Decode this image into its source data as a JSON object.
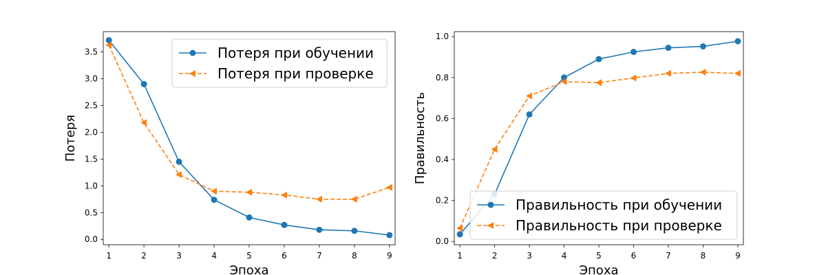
{
  "chart_data": [
    {
      "type": "line",
      "x": [
        1,
        2,
        3,
        4,
        5,
        6,
        7,
        8,
        9
      ],
      "xlabel": "Эпоха",
      "ylabel": "Потеря",
      "xlim": [
        0.84,
        9.16
      ],
      "ylim": [
        -0.1,
        3.88
      ],
      "xticks": [
        "1",
        "2",
        "3",
        "4",
        "5",
        "6",
        "7",
        "8",
        "9"
      ],
      "yticks": [
        "0.0",
        "0.5",
        "1.0",
        "1.5",
        "2.0",
        "2.5",
        "3.0",
        "3.5"
      ],
      "ytick_values": [
        0,
        0.5,
        1.0,
        1.5,
        2.0,
        2.5,
        3.0,
        3.5
      ],
      "legend_position": "top-right",
      "series": [
        {
          "name": "Потеря при обучении",
          "values": [
            3.72,
            2.9,
            1.45,
            0.74,
            0.41,
            0.27,
            0.18,
            0.16,
            0.08
          ],
          "color": "#1f77b4",
          "style": "solid",
          "marker": "circle"
        },
        {
          "name": "Потеря при проверке",
          "values": [
            3.63,
            2.18,
            1.21,
            0.9,
            0.88,
            0.83,
            0.75,
            0.75,
            0.97
          ],
          "color": "#ff7f0e",
          "style": "dashed",
          "marker": "triangle-left"
        }
      ]
    },
    {
      "type": "line",
      "x": [
        1,
        2,
        3,
        4,
        5,
        6,
        7,
        8,
        9
      ],
      "xlabel": "Эпоха",
      "ylabel": "Правильность",
      "xlim": [
        0.84,
        9.16
      ],
      "ylim": [
        -0.016,
        1.024
      ],
      "xticks": [
        "1",
        "2",
        "3",
        "4",
        "5",
        "6",
        "7",
        "8",
        "9"
      ],
      "yticks": [
        "0.0",
        "0.2",
        "0.4",
        "0.6",
        "0.8",
        "1.0"
      ],
      "ytick_values": [
        0,
        0.2,
        0.4,
        0.6,
        0.8,
        1.0
      ],
      "legend_position": "bottom-right",
      "series": [
        {
          "name": "Правильность при обучении",
          "values": [
            0.035,
            0.23,
            0.62,
            0.8,
            0.89,
            0.925,
            0.945,
            0.952,
            0.977
          ],
          "color": "#1f77b4",
          "style": "solid",
          "marker": "circle"
        },
        {
          "name": "Правильность при проверке",
          "values": [
            0.065,
            0.45,
            0.71,
            0.78,
            0.775,
            0.798,
            0.82,
            0.826,
            0.82
          ],
          "color": "#ff7f0e",
          "style": "dashed",
          "marker": "triangle-left"
        }
      ]
    }
  ]
}
